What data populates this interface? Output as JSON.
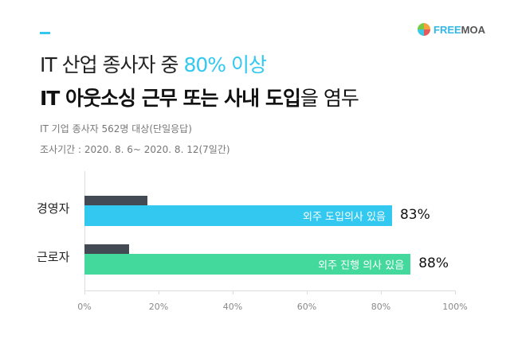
{
  "brand": {
    "logo_text_1": "FREE",
    "logo_text_2": "MOA"
  },
  "header": {
    "title1_a": "IT 산업 종사자 중 ",
    "title1_b": "80% 이상",
    "title2_a": "IT 아웃소싱 근무 또는 사내 도입",
    "title2_b": "을 염두",
    "sub1": "IT 기업 종사자 562명 대상(단일응답)",
    "sub2": "조사기간 : 2020. 8. 6~ 2020. 8. 12(7일간)"
  },
  "colors": {
    "accent": "#33c8ef",
    "green": "#43d89c",
    "dark": "#434a54"
  },
  "chart_data": {
    "type": "bar",
    "orientation": "horizontal",
    "xlim": [
      0,
      100
    ],
    "categories": [
      "경영자",
      "근로자"
    ],
    "series": [
      {
        "name": "other",
        "values": [
          17,
          12
        ]
      },
      {
        "name": "main",
        "values": [
          83,
          88
        ],
        "labels": [
          "외주 도입의사 있음",
          "외주 진행 의사 있음"
        ],
        "value_labels": [
          "83%",
          "88%"
        ]
      }
    ],
    "ticks": [
      "0%",
      "20%",
      "40%",
      "60%",
      "80%",
      "100%"
    ]
  }
}
